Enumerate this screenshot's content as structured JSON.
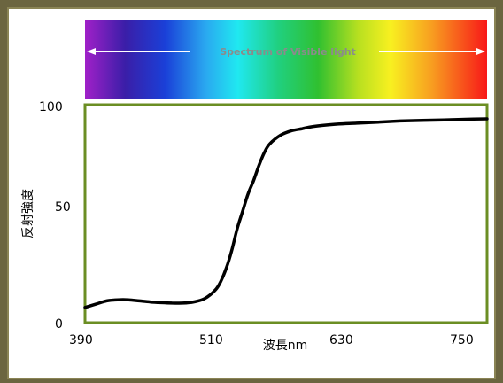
{
  "chart_data": {
    "type": "line",
    "xlabel": "波長nm",
    "ylabel": "反射強度",
    "xlim": [
      390,
      760
    ],
    "ylim": [
      0,
      100
    ],
    "x_ticks": [
      "390",
      "510",
      "630",
      "750"
    ],
    "y_ticks": [
      "0",
      "50",
      "100"
    ],
    "spectrum_label": "Spectrum of Visible light",
    "series": [
      {
        "x": [
          390,
          400,
          410,
          420,
          430,
          440,
          450,
          460,
          470,
          480,
          490,
          500,
          510,
          515,
          520,
          525,
          530,
          535,
          540,
          545,
          550,
          555,
          560,
          570,
          580,
          590,
          600,
          620,
          640,
          660,
          680,
          700,
          720,
          740,
          760
        ],
        "y": [
          7,
          8.5,
          10,
          10.5,
          10.5,
          10,
          9.5,
          9.2,
          9,
          9,
          9.5,
          11,
          15,
          19,
          25,
          33,
          43,
          51,
          59,
          65,
          72,
          78,
          82,
          86,
          88,
          89,
          90,
          91,
          91.5,
          92,
          92.5,
          92.8,
          93,
          93.3,
          93.5
        ],
        "color": "#000000"
      }
    ],
    "frame_color": "#6b8e23",
    "grid": false
  }
}
